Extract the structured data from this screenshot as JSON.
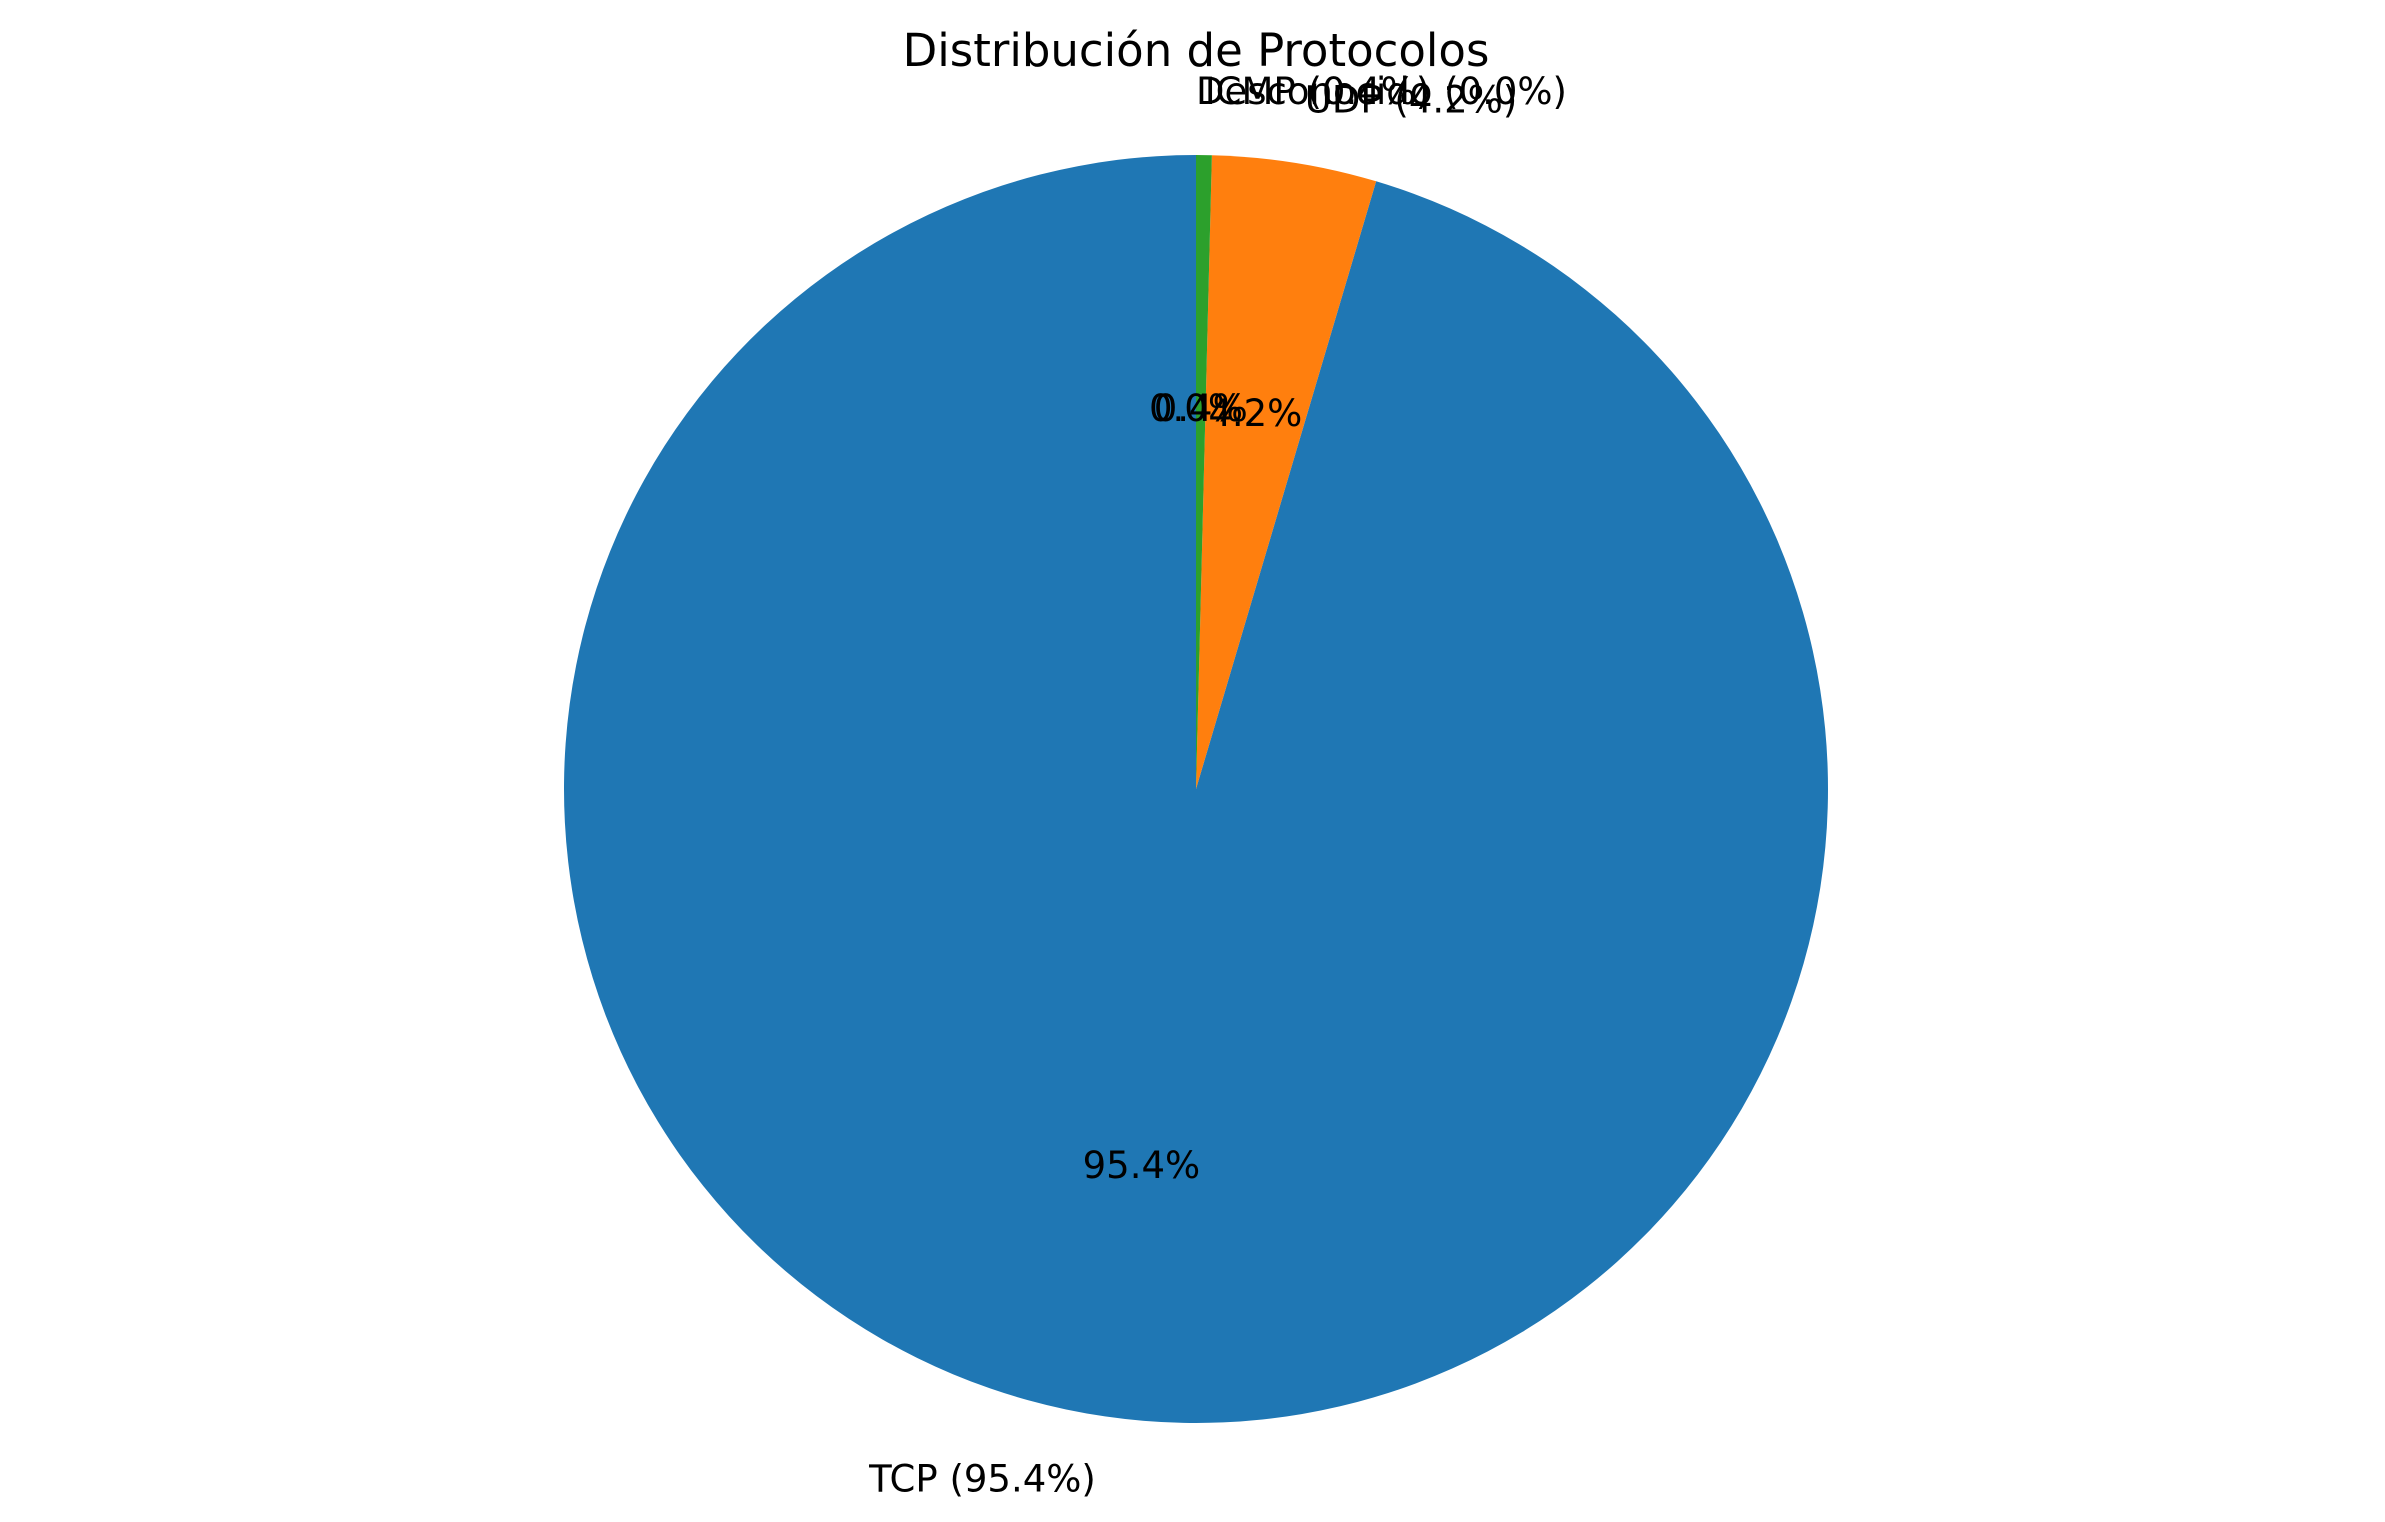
{
  "chart_data": {
    "type": "pie",
    "title": "Distribución de Protocolos",
    "start_angle_deg": 90,
    "counterclock": true,
    "series": [
      {
        "name": "TCP",
        "value": 95.4,
        "label": "TCP (95.4%)",
        "pct_label": "95.4%",
        "color": "#1f77b4"
      },
      {
        "name": "UDP",
        "value": 4.2,
        "label": "UDP (4.2%)",
        "pct_label": "4.2%",
        "color": "#ff7f0e"
      },
      {
        "name": "ICMP",
        "value": 0.4,
        "label": "ICMP (0.4%)",
        "pct_label": "0.4%",
        "color": "#2ca02c"
      },
      {
        "name": "Desconocido",
        "value": 0.0,
        "label": "Desconocido (0.0%)",
        "pct_label": "0.0%",
        "color": "#d62728"
      }
    ]
  }
}
